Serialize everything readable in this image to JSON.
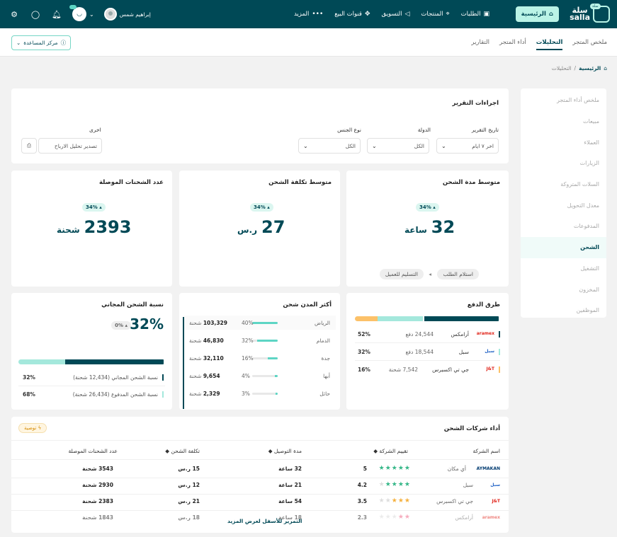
{
  "topbar": {
    "logo_text": "سلة\nsalla",
    "logo_badge": "سلة",
    "home_label": "الرئيسية",
    "nav": [
      {
        "label": "الطلبات",
        "icon": "box-icon"
      },
      {
        "label": "المنتجات",
        "icon": "tag-icon"
      },
      {
        "label": "التسويق",
        "icon": "megaphone-icon"
      },
      {
        "label": "قنوات البيع",
        "icon": "channels-icon"
      },
      {
        "label": "المزيد",
        "icon": "dots-icon"
      }
    ],
    "user_name": "إبراهيم شمس"
  },
  "tabs": [
    {
      "label": "ملخص المتجر",
      "active": false
    },
    {
      "label": "التحليلات",
      "active": true
    },
    {
      "label": "أداء المتجر",
      "active": false
    },
    {
      "label": "التقارير",
      "active": false
    }
  ],
  "help_label": "مركز المساعدة",
  "breadcrumb": {
    "home": "الرئيسية",
    "sep": "/",
    "current": "التحليلات"
  },
  "sidebar": {
    "items": [
      {
        "label": "ملخص أداء المتجر"
      },
      {
        "label": "مبيعات"
      },
      {
        "label": "العملاء"
      },
      {
        "label": "الزيارات"
      },
      {
        "label": "السلات المتروكة"
      },
      {
        "label": "معدل التحويل"
      },
      {
        "label": "المدفوعات"
      },
      {
        "label": "الشحن"
      },
      {
        "label": "التشغيل"
      },
      {
        "label": "المخزون"
      },
      {
        "label": "الموظفين"
      }
    ]
  },
  "report": {
    "title": "اجراءات التقرير",
    "date_label": "تاريخ التقرير",
    "date_value": "اخر ٧ ايام",
    "country_label": "الدولة",
    "country_value": "الكل",
    "gender_label": "نوع الجنس",
    "gender_value": "الكل",
    "other_label": "اخرى",
    "export_label": "تصدير تحليل الارباح"
  },
  "kpis": {
    "duration": {
      "title": "متوسط مدة الشحن",
      "pct": "34%",
      "value": "32",
      "unit": "ساعة",
      "pill_from": "استلام الطلب",
      "pill_to": "التسليم للعميل"
    },
    "cost": {
      "title": "متوسط تكلفة الشحن",
      "pct": "34%",
      "value": "27",
      "unit": "ر.س"
    },
    "count": {
      "title": "عدد الشحنات الموصلة",
      "pct": "34%",
      "value": "2393",
      "unit": "شحنة"
    }
  },
  "payment": {
    "title": "طرق الدفع",
    "segments": [
      {
        "share": 52,
        "color": "#004956"
      },
      {
        "share": 32,
        "color": "#a4e8dc"
      },
      {
        "share": 16,
        "color": "#fcc169"
      }
    ],
    "rows": [
      {
        "carrier": "أرامكس",
        "logo": "aramex",
        "count": "24,544 دفع",
        "pct": "52%",
        "color": "#004956",
        "logo_color": "#e1251b"
      },
      {
        "carrier": "سبل",
        "logo": "سبل",
        "count": "18,544 دفع",
        "pct": "32%",
        "color": "#a4e8dc",
        "logo_color": "#1b5ec4"
      },
      {
        "carrier": "جي تي اكسبرس",
        "logo": "J&T",
        "count": "7,542 شحنة",
        "pct": "16%",
        "color": "#fcc169",
        "logo_color": "#e1251b"
      }
    ]
  },
  "cities": {
    "title": "أكثر المدن شحن",
    "rows": [
      {
        "name": "الرياض",
        "pct": "40%",
        "fill": 0.4,
        "value": "103,329",
        "unit": "شحنة"
      },
      {
        "name": "الدمام",
        "pct": "32%",
        "fill": 0.32,
        "value": "46,830",
        "unit": "شحنة"
      },
      {
        "name": "جدة",
        "pct": "16%",
        "fill": 0.16,
        "value": "32,110",
        "unit": "شحنة"
      },
      {
        "name": "أبها",
        "pct": "4%",
        "fill": 0.04,
        "value": "9,654",
        "unit": "شحنة"
      },
      {
        "name": "حائل",
        "pct": "3%",
        "fill": 0.03,
        "value": "2,329",
        "unit": "شحنة"
      }
    ]
  },
  "free": {
    "title": "نسبة الشحن المجاني",
    "value": "32%",
    "pct": "0%",
    "segments": [
      {
        "share": 68,
        "color": "#004956"
      },
      {
        "share": 32,
        "color": "#a4e8dc"
      }
    ],
    "rows": [
      {
        "label": "نسبة الشحن المجاني (12,434 شحنة)",
        "pct": "32%",
        "color": "#004956"
      },
      {
        "label": "نسبة الشحن المدفوع (26,434 شحنة)",
        "pct": "68%",
        "color": "#a4e8dc"
      }
    ]
  },
  "companies": {
    "title": "أداء شركات الشحن",
    "tag": "توصية",
    "headers": {
      "name": "اسم الشركة",
      "rating": "تقييم الشركة",
      "duration": "مدة التوصيل",
      "cost": "تكلفة الشحن",
      "count": "عدد الشحنات الموصلة"
    },
    "rows": [
      {
        "name": "أي مكان",
        "logo": "AYMAKAN",
        "logo_color": "#003a70",
        "rating": "5",
        "stars": 5,
        "star_color": "#35b788",
        "duration": "32 ساعة",
        "cost": "15 ر.س",
        "count": "3543 شحنة"
      },
      {
        "name": "سبل",
        "logo": "سبل",
        "logo_color": "#1b5ec4",
        "rating": "4.2",
        "stars": 4,
        "star_color": "#35b788",
        "duration": "21 ساعة",
        "cost": "12 ر.س",
        "count": "2930 شحنة"
      },
      {
        "name": "جي تي اكسبرس",
        "logo": "J&T",
        "logo_color": "#e1251b",
        "rating": "3.5",
        "stars": 3,
        "star_color": "#f5b13e",
        "duration": "54 ساعة",
        "cost": "21 ر.س",
        "count": "2383 شحنة"
      },
      {
        "name": "أرامكس",
        "logo": "aramex",
        "logo_color": "#e1251b",
        "rating": "2.3",
        "stars": 2,
        "star_color": "#f06a8a",
        "duration": "18 ساعة",
        "cost": "18 ر.س",
        "count": "1843 شحنة"
      }
    ],
    "scroll_hint": "التمرير للأسفل لعرض المزيد"
  }
}
